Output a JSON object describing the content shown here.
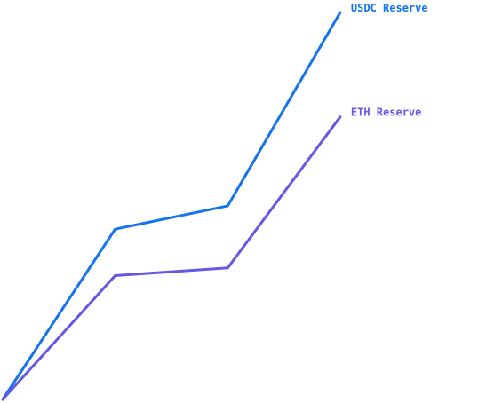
{
  "chart_data": {
    "type": "line",
    "title": "",
    "xlabel": "",
    "ylabel": "",
    "grid": false,
    "x": [
      0,
      1,
      2,
      3
    ],
    "series": [
      {
        "name": "USDC Reserve",
        "color": "#1474ec",
        "values": [
          0,
          0.44,
          0.5,
          1.0
        ]
      },
      {
        "name": "ETH Reserve",
        "color": "#6458e4",
        "values": [
          0,
          0.32,
          0.34,
          0.73
        ]
      }
    ],
    "xlim": [
      0,
      3.04
    ],
    "ylim": [
      0,
      1
    ]
  }
}
